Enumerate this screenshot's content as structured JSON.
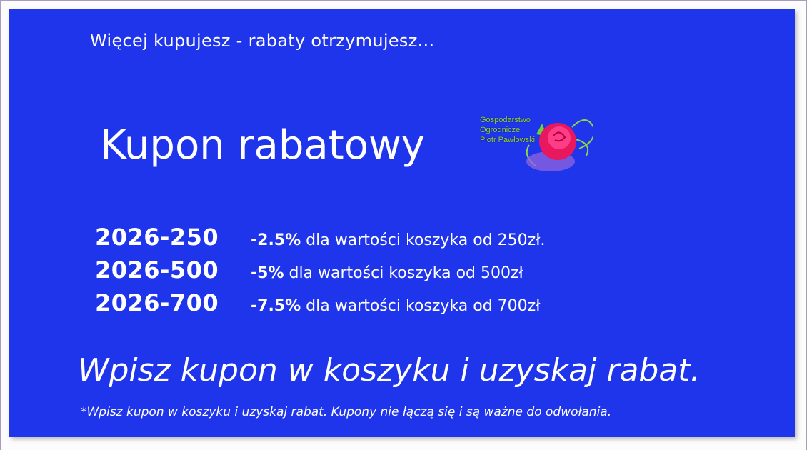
{
  "tagline": "Więcej kupujesz - rabaty otrzymujesz...",
  "title": "Kupon rabatowy",
  "logo": {
    "line1": "Gospodarstwo",
    "line2": "Ogrodnicze",
    "line3": "Piotr Pawłowski"
  },
  "coupons": [
    {
      "code": "2026-250",
      "discount": "-2.5%",
      "text": " dla wartości koszyka od 250zł."
    },
    {
      "code": "2026-500",
      "discount": "-5%",
      "text": " dla wartości koszyka od 500zł"
    },
    {
      "code": "2026-700",
      "discount": "-7.5%",
      "text": " dla wartości koszyka od 700zł"
    }
  ],
  "cta": "Wpisz kupon w koszyku i uzyskaj rabat.",
  "note": "*Wpisz kupon w koszyku i uzyskaj rabat. Kupony nie łączą się i są ważne do odwołania.",
  "colors": {
    "background": "#1f35ec",
    "text": "#ffffff",
    "logo_text": "#8fd54a"
  }
}
